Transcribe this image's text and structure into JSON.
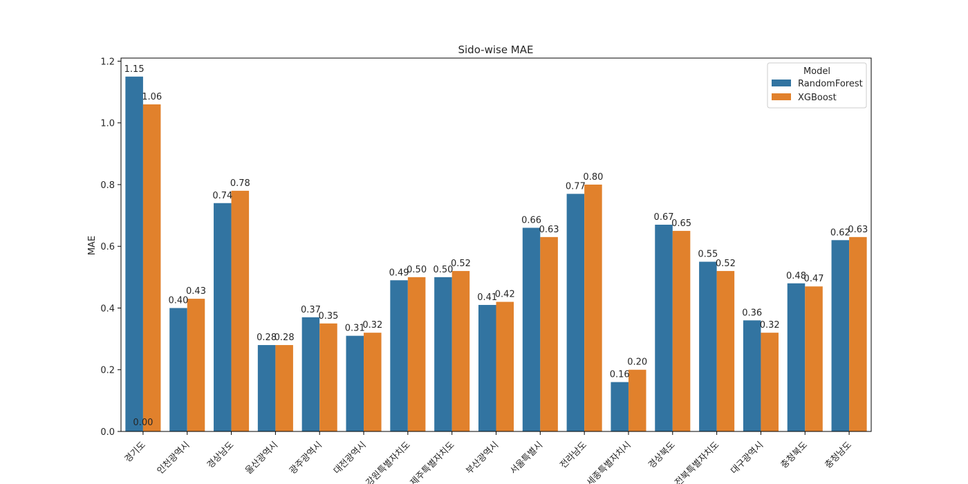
{
  "chart_data": {
    "type": "bar",
    "title": "Sido-wise MAE",
    "xlabel": "",
    "ylabel": "MAE",
    "ylim": [
      0,
      1.21
    ],
    "yticks": [
      "0.0",
      "0.2",
      "0.4",
      "0.6",
      "0.8",
      "1.0",
      "1.2"
    ],
    "categories": [
      "경기도",
      "인천광역시",
      "경상남도",
      "울산광역시",
      "광주광역시",
      "대전광역시",
      "강원특별자치도",
      "제주특별자치도",
      "부산광역시",
      "서울특별시",
      "전라남도",
      "세종특별자치시",
      "경상북도",
      "전북특별자치도",
      "대구광역시",
      "충청북도",
      "충청남도"
    ],
    "series": [
      {
        "name": "RandomForest",
        "color": "#3274a1",
        "values": [
          1.15,
          0.4,
          0.74,
          0.28,
          0.37,
          0.31,
          0.49,
          0.5,
          0.41,
          0.66,
          0.77,
          0.16,
          0.67,
          0.55,
          0.36,
          0.48,
          0.62
        ],
        "labels": [
          "1.15",
          "0.40",
          "0.74",
          "0.28",
          "0.37",
          "0.31",
          "0.49",
          "0.50",
          "0.41",
          "0.66",
          "0.77",
          "0.16",
          "0.67",
          "0.55",
          "0.36",
          "0.48",
          "0.62"
        ]
      },
      {
        "name": "XGBoost",
        "color": "#e1812c",
        "values": [
          1.06,
          0.43,
          0.78,
          0.28,
          0.35,
          0.32,
          0.5,
          0.52,
          0.42,
          0.63,
          0.8,
          0.2,
          0.65,
          0.52,
          0.32,
          0.47,
          0.63
        ],
        "labels": [
          "1.06",
          "0.43",
          "0.78",
          "0.28",
          "0.35",
          "0.32",
          "0.50",
          "0.52",
          "0.42",
          "0.63",
          "0.80",
          "0.20",
          "0.65",
          "0.52",
          "0.32",
          "0.47",
          "0.63"
        ]
      }
    ],
    "extra_annotation": "0.00",
    "legend": {
      "title": "Model",
      "placement": "top-right"
    },
    "grid": false
  }
}
